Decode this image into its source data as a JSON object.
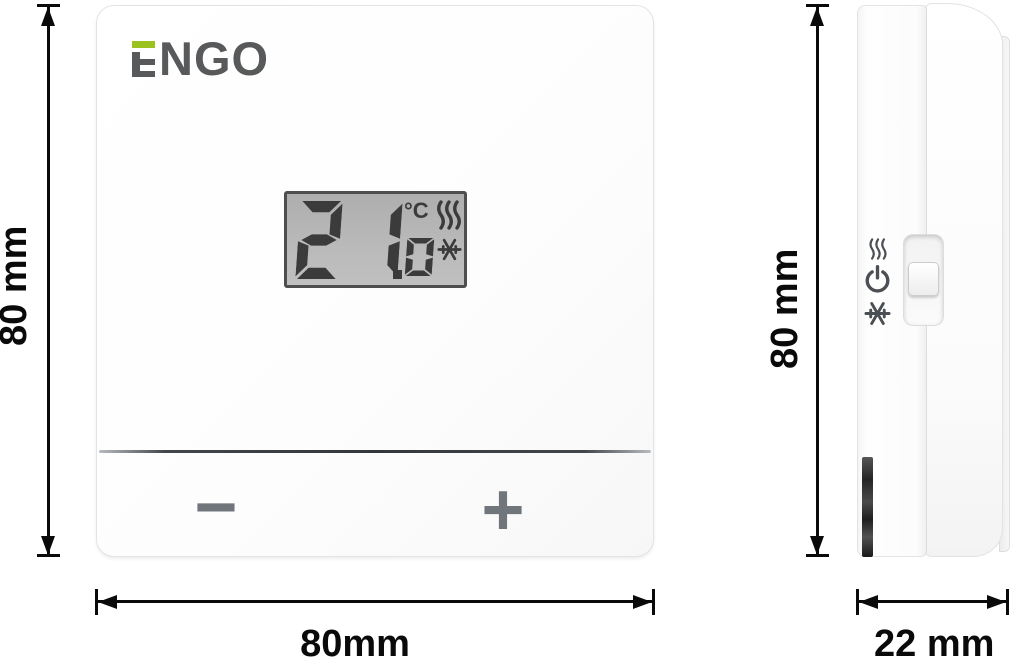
{
  "logo": {
    "brand": "ENGO",
    "text_after_e": "NGO"
  },
  "front_view": {
    "lcd": {
      "temperature": "21.0",
      "unit": "°C",
      "status_icons": [
        "heating-waves",
        "snowflake"
      ]
    },
    "minus_label": "−",
    "plus_label": "+"
  },
  "side_view": {
    "icons": [
      "heating-waves",
      "power",
      "snowflake"
    ],
    "control": "mode-slider-switch"
  },
  "dimensions": {
    "front_height_label": "80 mm",
    "front_width_label": "80mm",
    "side_height_label": "80 mm",
    "side_depth_label": "22 mm"
  },
  "colors": {
    "accent_green": "#9bc21e",
    "logo_gray": "#58595b",
    "lcd_background": "#b6b6b6",
    "lcd_segments": "#3b3b3b",
    "button_gray": "#71767c",
    "dimension_ink": "#0a0a0a"
  }
}
